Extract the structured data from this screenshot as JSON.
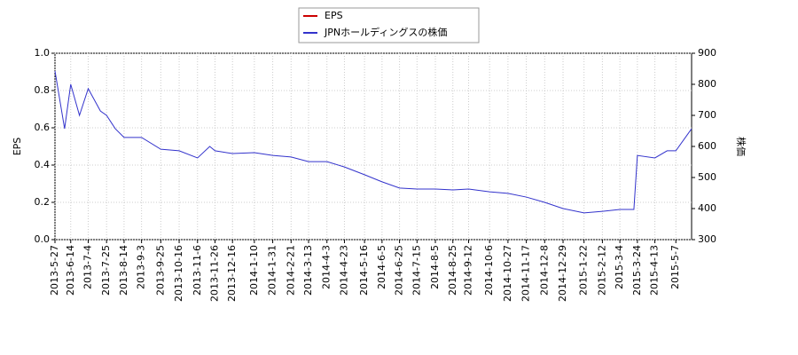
{
  "chart_data": {
    "type": "line",
    "ylabel": "EPS",
    "y2label": "株価",
    "x": [
      "2013-5-27",
      "2013-6-7",
      "2013-6-14",
      "2013-6-24",
      "2013-7-4",
      "2013-7-18",
      "2013-7-25",
      "2013-8-4",
      "2013-8-14",
      "2013-9-3",
      "2013-9-25",
      "2013-10-16",
      "2013-11-6",
      "2013-11-20",
      "2013-11-26",
      "2013-12-16",
      "2014-1-10",
      "2014-1-31",
      "2014-2-21",
      "2014-3-13",
      "2014-4-3",
      "2014-4-23",
      "2014-5-16",
      "2014-6-5",
      "2014-6-25",
      "2014-7-15",
      "2014-8-5",
      "2014-8-25",
      "2014-9-12",
      "2014-10-6",
      "2014-10-27",
      "2014-11-17",
      "2014-12-8",
      "2014-12-29",
      "2015-1-22",
      "2015-2-12",
      "2015-3-4",
      "2015-3-20",
      "2015-3-24",
      "2015-4-13",
      "2015-4-27",
      "2015-5-7",
      "2015-5-25"
    ],
    "series": [
      {
        "name": "EPS",
        "color": "#cc0000",
        "values": [
          null,
          null,
          null,
          null,
          null,
          null,
          null,
          null,
          null,
          null,
          null,
          null,
          null,
          null,
          null,
          null,
          null,
          null,
          null,
          null,
          null,
          null,
          null,
          null,
          null,
          null,
          null,
          null,
          null,
          null,
          null,
          null,
          null,
          null,
          null,
          null,
          null,
          null,
          null,
          null,
          null,
          null,
          null
        ]
      },
      {
        "name": "JPNホールディングスの株価",
        "color": "#3333cc",
        "axis": "y2",
        "values": [
          843,
          657,
          800,
          700,
          786,
          714,
          700,
          657,
          629,
          629,
          591,
          586,
          563,
          600,
          586,
          577,
          580,
          571,
          566,
          551,
          551,
          534,
          509,
          486,
          466,
          463,
          463,
          460,
          463,
          454,
          449,
          437,
          420,
          400,
          386,
          391,
          397,
          397,
          571,
          563,
          586,
          586,
          657
        ]
      }
    ],
    "xlim": [
      "2013-5-27",
      "2015-5-25"
    ],
    "xticks": [
      "2013-5-27",
      "2013-6-14",
      "2013-7-4",
      "2013-7-25",
      "2013-8-14",
      "2013-9-3",
      "2013-9-25",
      "2013-10-16",
      "2013-11-6",
      "2013-11-26",
      "2013-12-16",
      "2014-1-10",
      "2014-1-31",
      "2014-2-21",
      "2014-3-13",
      "2014-4-3",
      "2014-4-23",
      "2014-5-16",
      "2014-6-5",
      "2014-6-25",
      "2014-7-15",
      "2014-8-5",
      "2014-8-25",
      "2014-9-12",
      "2014-10-6",
      "2014-10-27",
      "2014-11-17",
      "2014-12-8",
      "2014-12-29",
      "2015-1-22",
      "2015-2-12",
      "2015-3-4",
      "2015-3-24",
      "2015-4-13",
      "2015-5-7"
    ],
    "ylim": [
      0,
      1
    ],
    "yticks": [
      {
        "value": 0,
        "label": "0.0"
      },
      {
        "value": 0.2,
        "label": "0.2"
      },
      {
        "value": 0.4,
        "label": "0.4"
      },
      {
        "value": 0.6,
        "label": "0.6"
      },
      {
        "value": 0.8,
        "label": "0.8"
      },
      {
        "value": 1,
        "label": "1.0"
      }
    ],
    "y2lim": [
      300,
      900
    ],
    "y2ticks": [
      300,
      400,
      500,
      600,
      700,
      800,
      900
    ],
    "grid": true
  }
}
